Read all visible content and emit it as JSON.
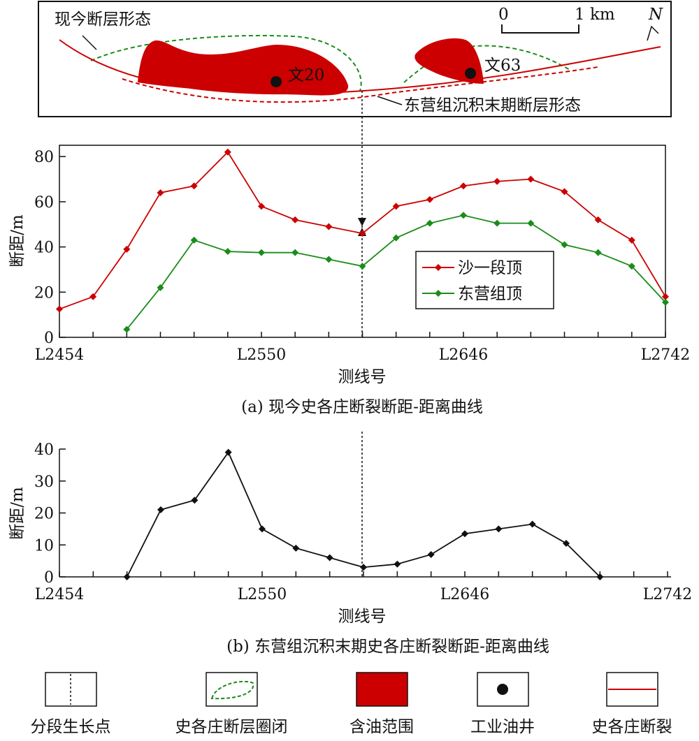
{
  "map": {
    "current_fault_label": "现今断层形态",
    "past_fault_label": "东营组沉积末期断层形态",
    "well1": "文20",
    "well2": "文63",
    "scale_0": "0",
    "scale_1": "1 km",
    "north": "N"
  },
  "chart_data": [
    {
      "type": "line",
      "caption": "(a) 现今史各庄断裂断距-距离曲线",
      "xlabel": "测线号",
      "ylabel": "断距/m",
      "xlim": [
        2454,
        2742
      ],
      "ylim": [
        0,
        85
      ],
      "y_ticks": [
        "0",
        "20",
        "40",
        "60",
        "80"
      ],
      "x_ticks": [
        "L2454",
        "L2550",
        "L2646",
        "L2742"
      ],
      "legend_position": "center-right",
      "series": [
        {
          "name": "沙一段顶",
          "color": "#cc0000",
          "x": [
            2454,
            2470,
            2486,
            2502,
            2518,
            2534,
            2550,
            2566,
            2582,
            2598,
            2614,
            2630,
            2646,
            2662,
            2678,
            2694,
            2710,
            2726,
            2742
          ],
          "y": [
            12.5,
            18,
            39,
            64,
            67,
            82,
            58,
            52,
            49,
            46,
            58,
            61,
            67,
            69,
            70,
            64.5,
            52,
            43,
            18
          ]
        },
        {
          "name": "东营组顶",
          "color": "#1a8c1a",
          "x": [
            2486,
            2502,
            2518,
            2534,
            2550,
            2566,
            2582,
            2598,
            2614,
            2630,
            2646,
            2662,
            2678,
            2694,
            2710,
            2726,
            2742
          ],
          "y": [
            3.5,
            22,
            43,
            38,
            37.5,
            37.5,
            34.5,
            31.5,
            44,
            50.5,
            54,
            50.5,
            50.5,
            41,
            37.5,
            31.5,
            15.5
          ]
        }
      ]
    },
    {
      "type": "line",
      "caption": "(b) 东营组沉积末期史各庄断裂断距-距离曲线",
      "xlabel": "测线号",
      "ylabel": "断距/m",
      "xlim": [
        2454,
        2742
      ],
      "ylim": [
        0,
        40
      ],
      "y_ticks": [
        "0",
        "10",
        "20",
        "30",
        "40"
      ],
      "x_ticks": [
        "L2454",
        "L2550",
        "L2646",
        "L2742"
      ],
      "series": [
        {
          "name": "",
          "color": "#111111",
          "x": [
            2486,
            2502,
            2518,
            2534,
            2550,
            2566,
            2582,
            2598,
            2614,
            2630,
            2646,
            2662,
            2678,
            2694,
            2710
          ],
          "y": [
            0,
            21,
            24,
            39,
            15,
            9,
            6,
            3,
            4,
            7,
            13.5,
            15,
            16.5,
            10.5,
            0
          ]
        }
      ]
    }
  ],
  "legend_bottom": [
    "分段生长点",
    "史各庄断层圈闭",
    "含油范围",
    "工业油井",
    "史各庄断裂"
  ],
  "colors": {
    "red": "#cc0000",
    "green": "#1a8c1a",
    "oil": "#cc0000",
    "black": "#111111"
  }
}
